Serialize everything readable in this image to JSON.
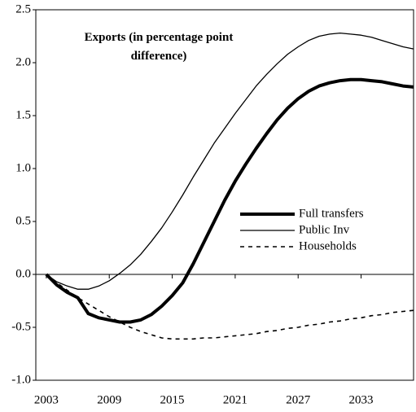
{
  "chart_data": {
    "type": "line",
    "title": "Exports (in percentage point difference)",
    "x": [
      2003,
      2004,
      2005,
      2006,
      2007,
      2008,
      2009,
      2010,
      2011,
      2012,
      2013,
      2014,
      2015,
      2016,
      2017,
      2018,
      2019,
      2020,
      2021,
      2022,
      2023,
      2024,
      2025,
      2026,
      2027,
      2028,
      2029,
      2030,
      2031,
      2032,
      2033,
      2034,
      2035,
      2036,
      2037,
      2038
    ],
    "series": [
      {
        "name": "Full transfers",
        "color": "#000000",
        "style": "thick",
        "values": [
          0,
          -0.1,
          -0.17,
          -0.22,
          -0.37,
          -0.41,
          -0.43,
          -0.45,
          -0.45,
          -0.43,
          -0.38,
          -0.3,
          -0.2,
          -0.08,
          0.1,
          0.3,
          0.5,
          0.7,
          0.88,
          1.04,
          1.19,
          1.33,
          1.46,
          1.57,
          1.66,
          1.73,
          1.78,
          1.81,
          1.83,
          1.84,
          1.84,
          1.83,
          1.82,
          1.8,
          1.78,
          1.77
        ]
      },
      {
        "name": "Public Inv",
        "color": "#000000",
        "style": "thin",
        "values": [
          0,
          -0.07,
          -0.11,
          -0.14,
          -0.14,
          -0.11,
          -0.06,
          0.01,
          0.09,
          0.19,
          0.31,
          0.44,
          0.59,
          0.75,
          0.92,
          1.08,
          1.24,
          1.38,
          1.52,
          1.65,
          1.78,
          1.89,
          1.99,
          2.08,
          2.15,
          2.21,
          2.25,
          2.27,
          2.28,
          2.27,
          2.26,
          2.24,
          2.21,
          2.18,
          2.15,
          2.13
        ]
      },
      {
        "name": "Households",
        "color": "#000000",
        "style": "dashed",
        "values": [
          0,
          -0.08,
          -0.15,
          -0.22,
          -0.28,
          -0.34,
          -0.4,
          -0.45,
          -0.5,
          -0.54,
          -0.57,
          -0.6,
          -0.61,
          -0.61,
          -0.61,
          -0.6,
          -0.6,
          -0.59,
          -0.58,
          -0.57,
          -0.56,
          -0.54,
          -0.53,
          -0.51,
          -0.5,
          -0.48,
          -0.47,
          -0.45,
          -0.44,
          -0.42,
          -0.41,
          -0.39,
          -0.38,
          -0.36,
          -0.35,
          -0.34
        ]
      }
    ],
    "xlim": [
      2002,
      2038
    ],
    "xticks": [
      2003,
      2009,
      2015,
      2021,
      2027,
      2033
    ],
    "ylim": [
      -1,
      2.5
    ],
    "yticks": [
      {
        "value": -1,
        "label": "-1.0"
      },
      -0.5,
      {
        "value": 0,
        "label": "0.0"
      },
      0.5,
      {
        "value": 1,
        "label": "1.0"
      },
      1.5,
      {
        "value": 2,
        "label": "2.0"
      },
      2.5
    ],
    "legend": "right"
  }
}
